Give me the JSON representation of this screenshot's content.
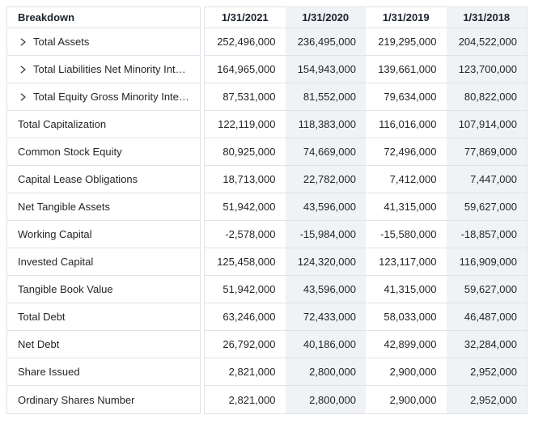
{
  "colors": {
    "border": "#e0e3e8",
    "shade": "#f0f2f5",
    "header-text": "#1b222c",
    "text": "#232629",
    "chevron": "#3c4857"
  },
  "table": {
    "header": {
      "breakdown_label": "Breakdown",
      "columns": [
        "1/31/2021",
        "1/31/2020",
        "1/31/2019",
        "1/31/2018"
      ]
    },
    "rows": [
      {
        "label": "Total Assets",
        "expandable": true,
        "values": [
          "252,496,000",
          "236,495,000",
          "219,295,000",
          "204,522,000"
        ]
      },
      {
        "label": "Total Liabilities Net Minority Int…",
        "expandable": true,
        "values": [
          "164,965,000",
          "154,943,000",
          "139,661,000",
          "123,700,000"
        ]
      },
      {
        "label": "Total Equity Gross Minority Inte…",
        "expandable": true,
        "values": [
          "87,531,000",
          "81,552,000",
          "79,634,000",
          "80,822,000"
        ]
      },
      {
        "label": "Total Capitalization",
        "expandable": false,
        "values": [
          "122,119,000",
          "118,383,000",
          "116,016,000",
          "107,914,000"
        ]
      },
      {
        "label": "Common Stock Equity",
        "expandable": false,
        "values": [
          "80,925,000",
          "74,669,000",
          "72,496,000",
          "77,869,000"
        ]
      },
      {
        "label": "Capital Lease Obligations",
        "expandable": false,
        "values": [
          "18,713,000",
          "22,782,000",
          "7,412,000",
          "7,447,000"
        ]
      },
      {
        "label": "Net Tangible Assets",
        "expandable": false,
        "values": [
          "51,942,000",
          "43,596,000",
          "41,315,000",
          "59,627,000"
        ]
      },
      {
        "label": "Working Capital",
        "expandable": false,
        "values": [
          "-2,578,000",
          "-15,984,000",
          "-15,580,000",
          "-18,857,000"
        ]
      },
      {
        "label": "Invested Capital",
        "expandable": false,
        "values": [
          "125,458,000",
          "124,320,000",
          "123,117,000",
          "116,909,000"
        ]
      },
      {
        "label": "Tangible Book Value",
        "expandable": false,
        "values": [
          "51,942,000",
          "43,596,000",
          "41,315,000",
          "59,627,000"
        ]
      },
      {
        "label": "Total Debt",
        "expandable": false,
        "values": [
          "63,246,000",
          "72,433,000",
          "58,033,000",
          "46,487,000"
        ]
      },
      {
        "label": "Net Debt",
        "expandable": false,
        "values": [
          "26,792,000",
          "40,186,000",
          "42,899,000",
          "32,284,000"
        ]
      },
      {
        "label": "Share Issued",
        "expandable": false,
        "values": [
          "2,821,000",
          "2,800,000",
          "2,900,000",
          "2,952,000"
        ]
      },
      {
        "label": "Ordinary Shares Number",
        "expandable": false,
        "values": [
          "2,821,000",
          "2,800,000",
          "2,900,000",
          "2,952,000"
        ]
      }
    ]
  }
}
